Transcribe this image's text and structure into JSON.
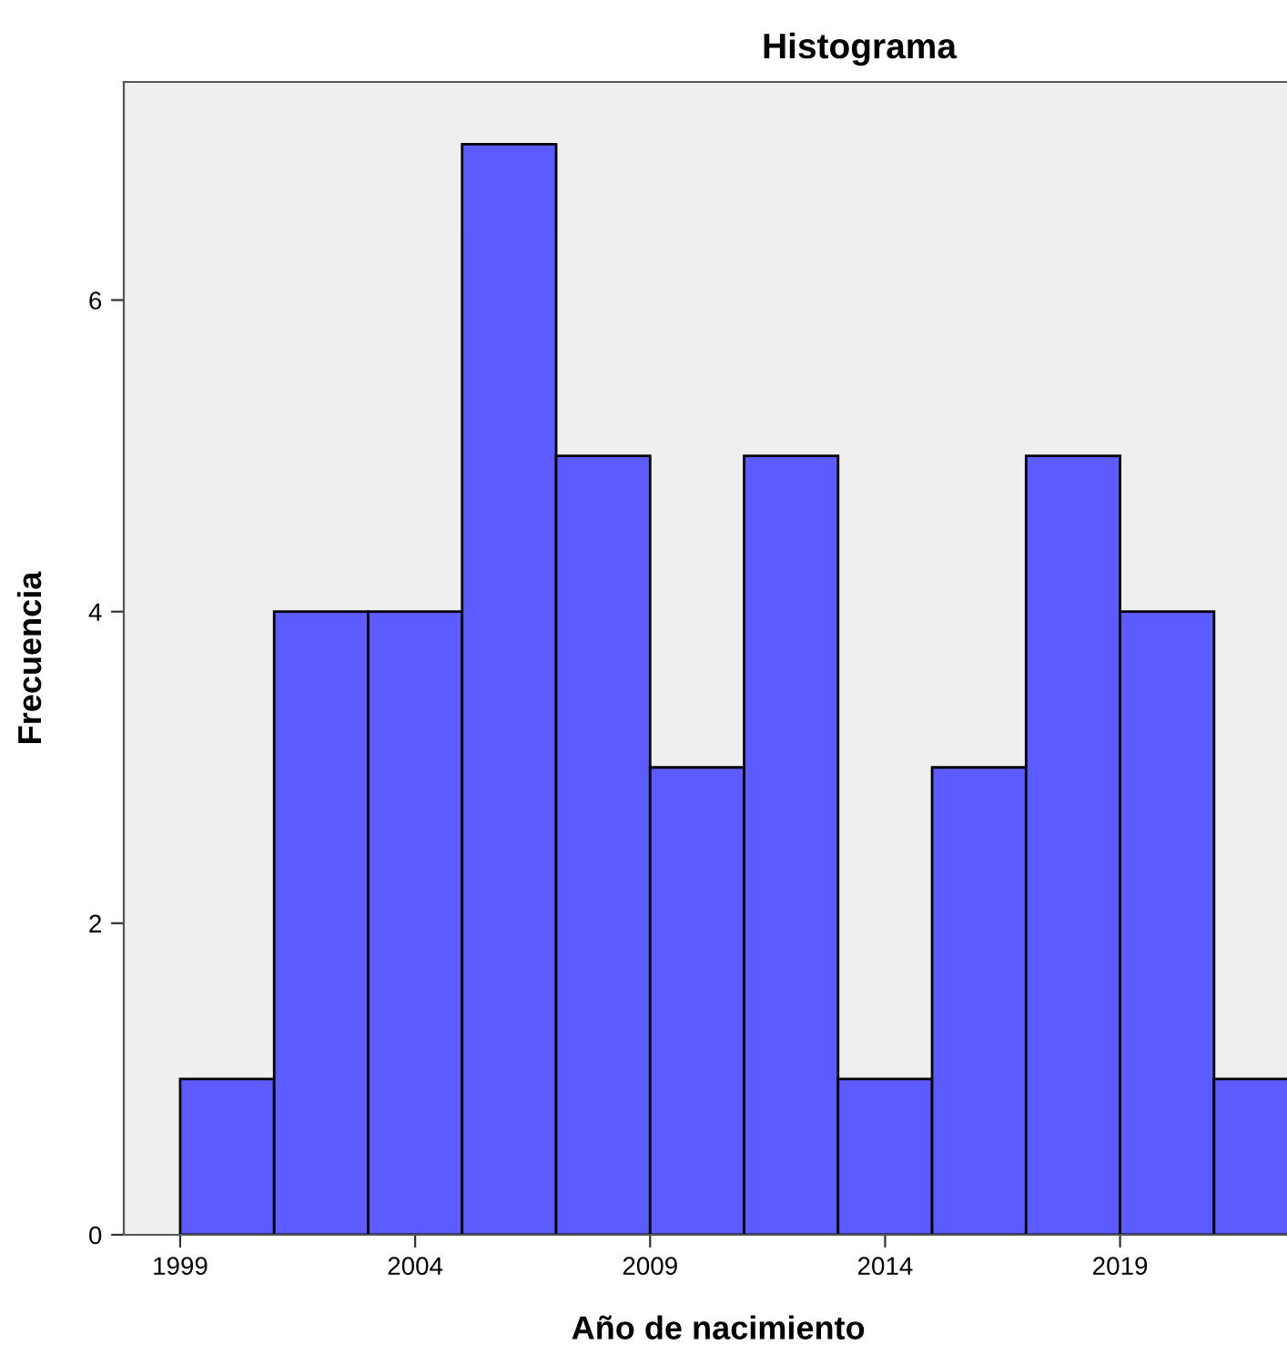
{
  "chart_data": {
    "type": "histogram",
    "title": "Histograma",
    "xlabel": "Año de nacimiento",
    "ylabel": "Frecuencia",
    "bins": [
      1999,
      2001,
      2003,
      2005,
      2007,
      2009,
      2011,
      2013,
      2015,
      2017,
      2019,
      2021,
      2023
    ],
    "values": [
      1,
      4,
      4,
      7,
      5,
      3,
      5,
      1,
      3,
      5,
      4,
      1
    ],
    "color": "#5b5bff",
    "xlim": [
      1997.8,
      2023.1
    ],
    "xticks": [
      1999,
      2004,
      2009,
      2014,
      2019
    ],
    "ylim": [
      0,
      7.4
    ],
    "yticks": [
      0,
      2,
      4,
      6
    ],
    "grid": false
  }
}
